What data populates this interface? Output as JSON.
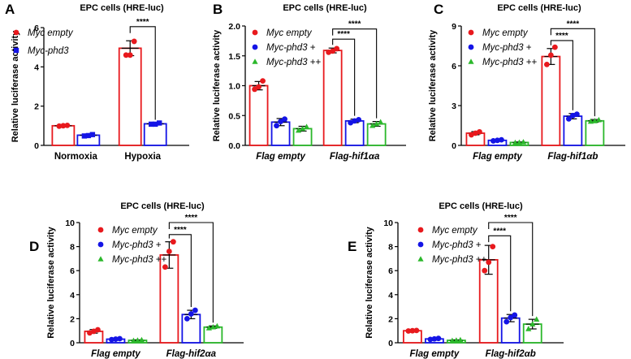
{
  "legend_labels": {
    "myc_empty": "Myc empty",
    "myc_phd3": "Myc-phd3",
    "myc_phd3_plus": "Myc-phd3 +",
    "myc_phd3_plusplus": "Myc-phd3 ++"
  },
  "colors": {
    "red": "#e8191d",
    "blue": "#1414e6",
    "green": "#2bb82b"
  },
  "chart_data": [
    {
      "panel": "A",
      "type": "bar",
      "title": "EPC cells (HRE-luc)",
      "ylabel": "Relative luciferase activity",
      "ylim": [
        0,
        6
      ],
      "yticks": [
        "0",
        "2",
        "4",
        "6"
      ],
      "categories": [
        "Normoxia",
        "Hypoxia"
      ],
      "italic_categories": false,
      "series": [
        {
          "name": "Myc empty",
          "color": "#e8191d",
          "marker": "circle",
          "values": [
            1.0,
            4.95
          ],
          "errors": [
            0.05,
            0.38
          ],
          "points": [
            [
              0.98,
              1.02,
              1.0
            ],
            [
              4.6,
              5.3,
              4.6
            ]
          ]
        },
        {
          "name": "Myc-phd3",
          "color": "#1414e6",
          "marker": "square",
          "values": [
            0.52,
            1.1
          ],
          "errors": [
            0.05,
            0.04
          ],
          "points": [
            [
              0.48,
              0.55,
              0.5
            ],
            [
              1.08,
              1.14,
              1.08
            ]
          ]
        }
      ],
      "significance": [
        {
          "category": 1,
          "from": 0,
          "to": 1,
          "label": "****",
          "level": 6.05
        }
      ]
    },
    {
      "panel": "B",
      "type": "bar",
      "title": "EPC cells (HRE-luc)",
      "ylabel": "Relative luciferase activity",
      "ylim": [
        0,
        2.0
      ],
      "yticks": [
        "0.0",
        "0.5",
        "1.0",
        "1.5",
        "2.0"
      ],
      "categories": [
        "Flag empty",
        "Flag-hif1αa"
      ],
      "italic_categories": true,
      "series": [
        {
          "name": "Myc empty",
          "color": "#e8191d",
          "marker": "circle",
          "values": [
            1.0,
            1.59
          ],
          "errors": [
            0.07,
            0.04
          ],
          "points": [
            [
              0.94,
              1.08,
              0.98
            ],
            [
              1.56,
              1.62,
              1.58
            ]
          ]
        },
        {
          "name": "Myc-phd3 +",
          "color": "#1414e6",
          "marker": "circle",
          "values": [
            0.39,
            0.41
          ],
          "errors": [
            0.06,
            0.03
          ],
          "points": [
            [
              0.33,
              0.44,
              0.4
            ],
            [
              0.38,
              0.43,
              0.41
            ]
          ]
        },
        {
          "name": "Myc-phd3 ++",
          "color": "#2bb82b",
          "marker": "triangle",
          "values": [
            0.28,
            0.36
          ],
          "errors": [
            0.04,
            0.04
          ],
          "points": [
            [
              0.25,
              0.31,
              0.28
            ],
            [
              0.33,
              0.39,
              0.36
            ]
          ]
        }
      ],
      "significance": [
        {
          "category": 1,
          "from": 0,
          "to": 1,
          "label": "****",
          "level": 1.78
        },
        {
          "category": 1,
          "from": 0,
          "to": 2,
          "label": "****",
          "level": 1.95
        }
      ]
    },
    {
      "panel": "C",
      "type": "bar",
      "title": "EPC cells (HRE-luc)",
      "ylabel": "Relative luciferase activity",
      "ylim": [
        0,
        9
      ],
      "yticks": [
        "0",
        "3",
        "6",
        "9"
      ],
      "categories": [
        "Flag empty",
        "Flag-hif1αb"
      ],
      "italic_categories": true,
      "series": [
        {
          "name": "Myc empty",
          "color": "#e8191d",
          "marker": "circle",
          "values": [
            0.92,
            6.7
          ],
          "errors": [
            0.12,
            0.6
          ],
          "points": [
            [
              0.8,
              1.02,
              0.92
            ],
            [
              6.1,
              7.4,
              6.8
            ]
          ]
        },
        {
          "name": "Myc-phd3 +",
          "color": "#1414e6",
          "marker": "circle",
          "values": [
            0.38,
            2.2
          ],
          "errors": [
            0.05,
            0.2
          ],
          "points": [
            [
              0.34,
              0.42,
              0.38
            ],
            [
              2.0,
              2.35,
              2.25
            ]
          ]
        },
        {
          "name": "Myc-phd3 ++",
          "color": "#2bb82b",
          "marker": "triangle",
          "values": [
            0.22,
            1.85
          ],
          "errors": [
            0.04,
            0.1
          ],
          "points": [
            [
              0.2,
              0.25,
              0.22
            ],
            [
              1.8,
              1.92,
              1.84
            ]
          ]
        }
      ],
      "significance": [
        {
          "category": 1,
          "from": 0,
          "to": 1,
          "label": "****",
          "level": 7.9
        },
        {
          "category": 1,
          "from": 0,
          "to": 2,
          "label": "****",
          "level": 8.8
        }
      ]
    },
    {
      "panel": "D",
      "type": "bar",
      "title": "EPC cells (HRE-luc)",
      "ylabel": "Relative luciferase activity",
      "ylim": [
        0,
        10
      ],
      "yticks": [
        "0",
        "2",
        "4",
        "6",
        "8",
        "10"
      ],
      "categories": [
        "Flag empty",
        "Flag-hif2αa"
      ],
      "italic_categories": true,
      "series": [
        {
          "name": "Myc empty",
          "color": "#e8191d",
          "marker": "circle",
          "values": [
            0.95,
            7.3
          ],
          "errors": [
            0.15,
            1.1
          ],
          "points": [
            [
              0.82,
              1.08,
              0.95
            ],
            [
              6.3,
              8.4,
              7.6
            ]
          ]
        },
        {
          "name": "Myc-phd3 +",
          "color": "#1414e6",
          "marker": "circle",
          "values": [
            0.3,
            2.35
          ],
          "errors": [
            0.05,
            0.35
          ],
          "points": [
            [
              0.26,
              0.34,
              0.3
            ],
            [
              2.0,
              2.7,
              2.4
            ]
          ]
        },
        {
          "name": "Myc-phd3 ++",
          "color": "#2bb82b",
          "marker": "triangle",
          "values": [
            0.2,
            1.3
          ],
          "errors": [
            0.04,
            0.1
          ],
          "points": [
            [
              0.17,
              0.23,
              0.2
            ],
            [
              1.22,
              1.38,
              1.3
            ]
          ]
        }
      ],
      "significance": [
        {
          "category": 1,
          "from": 0,
          "to": 1,
          "label": "****",
          "level": 9.0
        },
        {
          "category": 1,
          "from": 0,
          "to": 2,
          "label": "****",
          "level": 10.0
        }
      ]
    },
    {
      "panel": "E",
      "type": "bar",
      "title": "EPC cells (HRE-luc)",
      "ylabel": "Relative luciferase activity",
      "ylim": [
        0,
        10
      ],
      "yticks": [
        "0",
        "2",
        "4",
        "6",
        "8",
        "10"
      ],
      "categories": [
        "Flag empty",
        "Flag-hif2αb"
      ],
      "italic_categories": true,
      "series": [
        {
          "name": "Myc empty",
          "color": "#e8191d",
          "marker": "circle",
          "values": [
            1.0,
            6.9
          ],
          "errors": [
            0.05,
            1.2
          ],
          "points": [
            [
              0.98,
              1.02,
              1.0
            ],
            [
              6.0,
              8.0,
              6.7
            ]
          ]
        },
        {
          "name": "Myc-phd3 +",
          "color": "#1414e6",
          "marker": "circle",
          "values": [
            0.32,
            2.05
          ],
          "errors": [
            0.05,
            0.3
          ],
          "points": [
            [
              0.28,
              0.36,
              0.32
            ],
            [
              1.75,
              2.3,
              2.1
            ]
          ]
        },
        {
          "name": "Myc-phd3 ++",
          "color": "#2bb82b",
          "marker": "triangle",
          "values": [
            0.2,
            1.55
          ],
          "errors": [
            0.04,
            0.4
          ],
          "points": [
            [
              0.17,
              0.23,
              0.2
            ],
            [
              1.15,
              1.95,
              1.55
            ]
          ]
        }
      ],
      "significance": [
        {
          "category": 1,
          "from": 0,
          "to": 1,
          "label": "****",
          "level": 8.9
        },
        {
          "category": 1,
          "from": 0,
          "to": 2,
          "label": "****",
          "level": 10.0
        }
      ]
    }
  ]
}
